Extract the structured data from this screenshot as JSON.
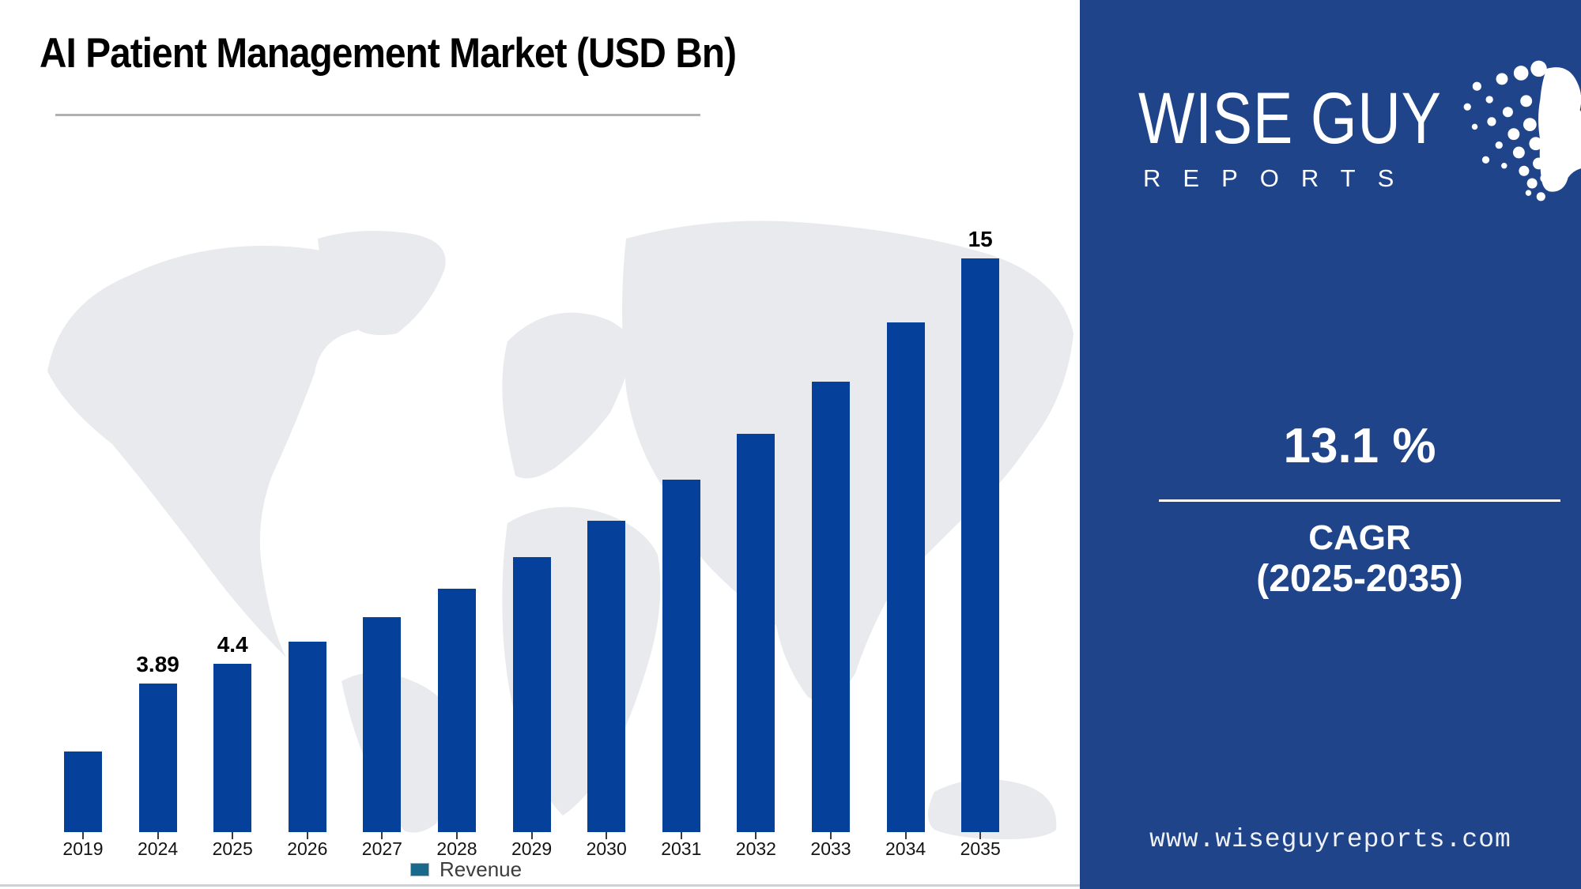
{
  "title": "AI Patient Management Market (USD Bn)",
  "legend": {
    "label": "Revenue"
  },
  "chart_data": {
    "type": "bar",
    "title": "AI Patient Management Market (USD Bn)",
    "categories": [
      "2019",
      "2024",
      "2025",
      "2026",
      "2027",
      "2028",
      "2029",
      "2030",
      "2031",
      "2032",
      "2033",
      "2034",
      "2035"
    ],
    "values": [
      2.11,
      3.89,
      4.4,
      4.98,
      5.63,
      6.36,
      7.2,
      8.14,
      9.21,
      10.41,
      11.78,
      13.32,
      15
    ],
    "bar_labels": [
      "",
      "3.89",
      "4.4",
      "",
      "",
      "",
      "",
      "",
      "",
      "",
      "",
      "",
      "15"
    ],
    "series_name": "Revenue",
    "xlabel": "",
    "ylabel": "",
    "ylim": [
      0,
      16.6
    ],
    "grid": false,
    "legend_position": "bottom",
    "colors": {
      "bar": "#05419b",
      "legend_swatch": "#19698c"
    }
  },
  "panel": {
    "logo": {
      "line1": "WISE GUY",
      "line2": "REPORTS"
    },
    "cagr_value": "13.1 %",
    "cagr_label": "CAGR",
    "cagr_period": "(2025-2035)",
    "website": "www.wiseguyreports.com",
    "background_color": "#1f4489"
  }
}
